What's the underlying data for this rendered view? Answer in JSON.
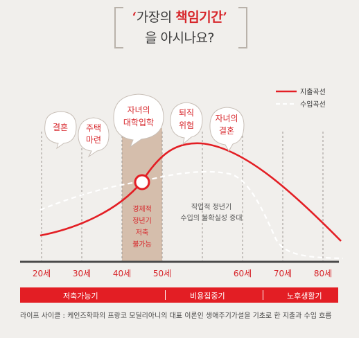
{
  "title": {
    "quote_open": "‘",
    "prefix": "가장의 ",
    "highlight": "책임기간",
    "quote_close": "’",
    "line2": "을 아시나요?"
  },
  "legend": {
    "expense": "지출곡선",
    "income": "수입곡선"
  },
  "events": [
    {
      "lines": [
        "결혼"
      ]
    },
    {
      "lines": [
        "주택",
        "마련"
      ]
    },
    {
      "lines": [
        "자녀의",
        "대학입학"
      ]
    },
    {
      "lines": [
        "퇴직",
        "위험"
      ]
    },
    {
      "lines": [
        "자녀의",
        "결혼"
      ]
    }
  ],
  "notes": {
    "highlight_box": [
      "경제적",
      "정년기",
      "저축",
      "불가능"
    ],
    "plateau": [
      "직업적 정년기",
      "수입의 불확실성 증대"
    ]
  },
  "ages": [
    "20세",
    "30세",
    "40세",
    "50세",
    "60세",
    "70세",
    "80세"
  ],
  "stages": [
    "저축가능기",
    "비용집중기",
    "노후생활기"
  ],
  "caption": "라이프 사이클 : 케인즈학파의 프랑코 모딜리아니의 대표 이론인 생애주기가설을 기초로 한 지출과 수입 흐름",
  "colors": {
    "expense": "#e31e24",
    "income": "#ffffff",
    "band": "#e31e24",
    "highlight": "#c9a991"
  }
}
